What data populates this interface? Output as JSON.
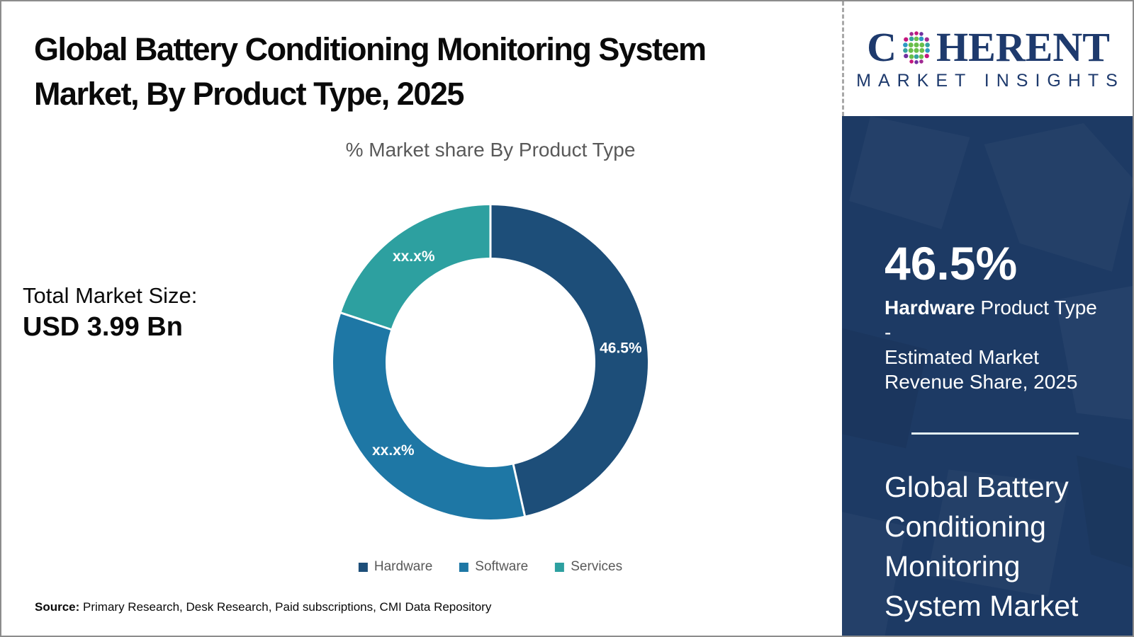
{
  "header": {
    "title_line1": "Global Battery Conditioning Monitoring System",
    "title_line2": "Market, By Product Type, 2025"
  },
  "logo": {
    "word_start": "C",
    "word_end": "HERENT",
    "subtitle": "MARKET INSIGHTS",
    "navy": "#1e3a6d"
  },
  "left_stat": {
    "label": "Total Market Size:",
    "value": "USD 3.99 Bn"
  },
  "chart_data": {
    "type": "pie",
    "variant": "donut",
    "title": "% Market share By Product Type",
    "categories": [
      "Hardware",
      "Software",
      "Services"
    ],
    "values": [
      46.5,
      33.6,
      19.9
    ],
    "labels": [
      "46.5%",
      "xx.x%",
      "xx.x%"
    ],
    "colors": [
      "#1d4e79",
      "#1e77a5",
      "#2da0a0"
    ],
    "start_angle_deg": 0,
    "hole_ratio": 0.667,
    "legend_position": "bottom",
    "note": "Software and Services shares are masked as xx.x% in the figure; numeric values estimated from arc angles"
  },
  "sidebar": {
    "stat_value": "46.5%",
    "stat_label_line1_bold": "Hardware",
    "stat_label_line1_rest": " Product Type -",
    "stat_label_line2": "Estimated Market",
    "stat_label_line3": "Revenue Share, 2025",
    "footer_lines": [
      "Global Battery",
      "Conditioning",
      "Monitoring",
      "System Market"
    ],
    "bg_color": "#1d3a64"
  },
  "source": {
    "prefix": "Source:",
    "text": " Primary Research, Desk Research, Paid subscriptions, CMI Data Repository"
  }
}
